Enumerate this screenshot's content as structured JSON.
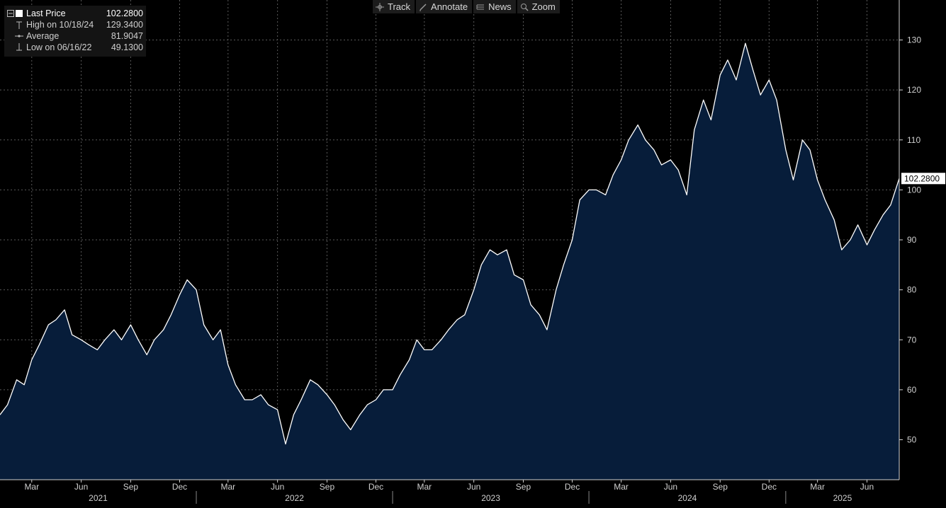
{
  "legend": {
    "last_price_label": "Last Price",
    "last_price_value": "102.2800",
    "high_label": "High on 10/18/24",
    "high_value": "129.3400",
    "average_label": "Average",
    "average_value": "81.9047",
    "low_label": "Low on 06/16/22",
    "low_value": "49.1300"
  },
  "toolbar": {
    "track_label": "Track",
    "annotate_label": "Annotate",
    "news_label": "News",
    "zoom_label": "Zoom"
  },
  "last_value_tag": "102.2800",
  "colors": {
    "background": "#000000",
    "area_fill": "#071d3a",
    "line": "#ffffff",
    "grid": "#5a5a5a",
    "label": "#cfcfcf"
  },
  "chart_data": {
    "type": "area",
    "title": "",
    "xlabel": "",
    "ylabel": "",
    "ylim": [
      42,
      138
    ],
    "yticks": [
      50,
      60,
      70,
      80,
      90,
      100,
      110,
      120,
      130
    ],
    "grid": true,
    "x_start": "2021-01-01",
    "x_end": "2025-07-31",
    "month_ticks": [
      {
        "date": "2021-03-01",
        "label": "Mar"
      },
      {
        "date": "2021-06-01",
        "label": "Jun"
      },
      {
        "date": "2021-09-01",
        "label": "Sep"
      },
      {
        "date": "2021-12-01",
        "label": "Dec"
      },
      {
        "date": "2022-03-01",
        "label": "Mar"
      },
      {
        "date": "2022-06-01",
        "label": "Jun"
      },
      {
        "date": "2022-09-01",
        "label": "Sep"
      },
      {
        "date": "2022-12-01",
        "label": "Dec"
      },
      {
        "date": "2023-03-01",
        "label": "Mar"
      },
      {
        "date": "2023-06-01",
        "label": "Jun"
      },
      {
        "date": "2023-09-01",
        "label": "Sep"
      },
      {
        "date": "2023-12-01",
        "label": "Dec"
      },
      {
        "date": "2024-03-01",
        "label": "Mar"
      },
      {
        "date": "2024-06-01",
        "label": "Jun"
      },
      {
        "date": "2024-09-01",
        "label": "Sep"
      },
      {
        "date": "2024-12-01",
        "label": "Dec"
      },
      {
        "date": "2025-03-01",
        "label": "Mar"
      },
      {
        "date": "2025-06-01",
        "label": "Jun"
      }
    ],
    "years": [
      "2021",
      "2022",
      "2023",
      "2024",
      "2025"
    ],
    "series": [
      {
        "name": "Last Price",
        "x": [
          "2021-01-01",
          "2021-01-15",
          "2021-02-01",
          "2021-02-15",
          "2021-03-01",
          "2021-03-15",
          "2021-04-01",
          "2021-04-15",
          "2021-05-01",
          "2021-05-15",
          "2021-06-01",
          "2021-06-15",
          "2021-07-01",
          "2021-07-15",
          "2021-08-01",
          "2021-08-15",
          "2021-09-01",
          "2021-09-15",
          "2021-10-01",
          "2021-10-15",
          "2021-11-01",
          "2021-11-15",
          "2021-12-01",
          "2021-12-15",
          "2022-01-01",
          "2022-01-15",
          "2022-02-01",
          "2022-02-15",
          "2022-03-01",
          "2022-03-15",
          "2022-04-01",
          "2022-04-15",
          "2022-05-01",
          "2022-05-15",
          "2022-06-01",
          "2022-06-16",
          "2022-07-01",
          "2022-07-15",
          "2022-08-01",
          "2022-08-15",
          "2022-09-01",
          "2022-09-15",
          "2022-10-01",
          "2022-10-15",
          "2022-11-01",
          "2022-11-15",
          "2022-12-01",
          "2022-12-15",
          "2023-01-01",
          "2023-01-15",
          "2023-02-01",
          "2023-02-15",
          "2023-03-01",
          "2023-03-15",
          "2023-04-01",
          "2023-04-15",
          "2023-05-01",
          "2023-05-15",
          "2023-06-01",
          "2023-06-15",
          "2023-07-01",
          "2023-07-15",
          "2023-08-01",
          "2023-08-15",
          "2023-09-01",
          "2023-09-15",
          "2023-10-01",
          "2023-10-15",
          "2023-11-01",
          "2023-11-15",
          "2023-12-01",
          "2023-12-15",
          "2024-01-01",
          "2024-01-15",
          "2024-02-01",
          "2024-02-15",
          "2024-03-01",
          "2024-03-15",
          "2024-04-01",
          "2024-04-15",
          "2024-05-01",
          "2024-05-15",
          "2024-06-01",
          "2024-06-15",
          "2024-07-01",
          "2024-07-15",
          "2024-08-01",
          "2024-08-15",
          "2024-09-01",
          "2024-09-15",
          "2024-10-01",
          "2024-10-18",
          "2024-11-01",
          "2024-11-15",
          "2024-12-01",
          "2024-12-15",
          "2025-01-01",
          "2025-01-15",
          "2025-02-01",
          "2025-02-15",
          "2025-03-01",
          "2025-03-15",
          "2025-04-01",
          "2025-04-15",
          "2025-05-01",
          "2025-05-15",
          "2025-06-01",
          "2025-06-15",
          "2025-07-01",
          "2025-07-15",
          "2025-07-31"
        ],
        "values": [
          55,
          57,
          62,
          61,
          66,
          69,
          73,
          74,
          76,
          71,
          70,
          69,
          68,
          70,
          72,
          70,
          73,
          70,
          67,
          70,
          72,
          75,
          79,
          82,
          80,
          73,
          70,
          72,
          65,
          61,
          58,
          58,
          59,
          57,
          56,
          49.13,
          55,
          58,
          62,
          61,
          59,
          57,
          54,
          52,
          55,
          57,
          58,
          60,
          60,
          63,
          66,
          70,
          68,
          68,
          70,
          72,
          74,
          75,
          80,
          85,
          88,
          87,
          88,
          83,
          82,
          77,
          75,
          72,
          80,
          85,
          90,
          98,
          100,
          100,
          99,
          103,
          106,
          110,
          113,
          110,
          108,
          105,
          106,
          104,
          99,
          112,
          118,
          114,
          123,
          126,
          122,
          129.34,
          124,
          119,
          122,
          118,
          108,
          102,
          110,
          108,
          102,
          98,
          94,
          88,
          90,
          93,
          89,
          92,
          95,
          97,
          102.28
        ]
      }
    ]
  }
}
